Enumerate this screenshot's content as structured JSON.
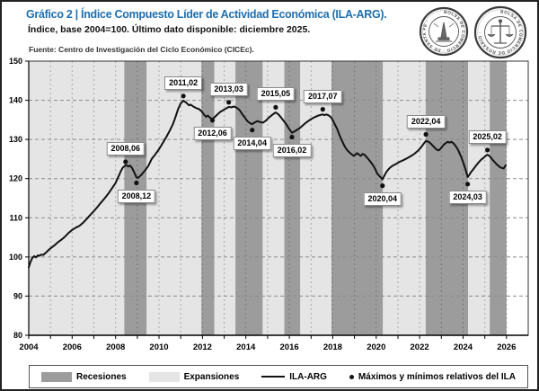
{
  "header": {
    "title": "Gráfico 2 | Índice Compuesto Líder de Actividad Económica (ILA-ARG).",
    "subtitle": "Índice, base 2004=100. Último dato disponible: diciembre 2025.",
    "source": "Fuente: Centro de Investigación del Ciclo Económico (CICEc).",
    "logo_left": "BOLSA DE COMERCIO · DE SANTA FE ·",
    "logo_right": "BOLSA DE COMERCIO DE ROSARIO ·"
  },
  "colors": {
    "title_blue": "#1E6FB0",
    "recession": "#9C9C9C",
    "expansion": "#E5E5E5",
    "line": "#111111",
    "grid": "#8C8C8C",
    "plot_border": "#333333"
  },
  "chart_data": {
    "type": "line",
    "title": "Índice Compuesto Líder de Actividad Económica (ILA-ARG)",
    "xlabel": "",
    "ylabel": "",
    "ylim": [
      80,
      150
    ],
    "ytick_step": 10,
    "xlim": [
      2004,
      2027
    ],
    "xtick_labels": [
      2004,
      2006,
      2008,
      2010,
      2012,
      2014,
      2016,
      2018,
      2020,
      2022,
      2024,
      2026
    ],
    "grid": true,
    "legend_position": "bottom",
    "data_end": 2026.0,
    "recessions": [
      [
        2008.4,
        2009.42
      ],
      [
        2011.95,
        2012.54
      ],
      [
        2013.52,
        2014.77
      ],
      [
        2015.77,
        2016.5
      ],
      [
        2017.94,
        2020.3
      ],
      [
        2022.28,
        2024.23
      ],
      [
        2025.23,
        2026.0
      ]
    ],
    "series": [
      {
        "name": "ILA-ARG"
      }
    ],
    "points": [
      [
        2004.0,
        97.3
      ],
      [
        2004.08,
        98.7
      ],
      [
        2004.17,
        99.8
      ],
      [
        2004.25,
        100.2
      ],
      [
        2004.33,
        99.9
      ],
      [
        2004.42,
        100.4
      ],
      [
        2004.5,
        100.3
      ],
      [
        2004.58,
        100.6
      ],
      [
        2004.67,
        100.5
      ],
      [
        2004.75,
        100.9
      ],
      [
        2004.83,
        101.3
      ],
      [
        2004.92,
        101.8
      ],
      [
        2005.0,
        102.2
      ],
      [
        2005.17,
        102.9
      ],
      [
        2005.33,
        103.7
      ],
      [
        2005.5,
        104.4
      ],
      [
        2005.67,
        105.2
      ],
      [
        2005.83,
        106.1
      ],
      [
        2006.0,
        106.9
      ],
      [
        2006.17,
        107.5
      ],
      [
        2006.33,
        107.9
      ],
      [
        2006.5,
        108.7
      ],
      [
        2006.67,
        109.7
      ],
      [
        2006.83,
        110.7
      ],
      [
        2007.0,
        111.7
      ],
      [
        2007.17,
        112.8
      ],
      [
        2007.33,
        113.9
      ],
      [
        2007.5,
        115.0
      ],
      [
        2007.67,
        116.2
      ],
      [
        2007.83,
        117.5
      ],
      [
        2008.0,
        118.9
      ],
      [
        2008.08,
        119.9
      ],
      [
        2008.17,
        121.0
      ],
      [
        2008.25,
        122.0
      ],
      [
        2008.33,
        122.8
      ],
      [
        2008.46,
        123.4
      ],
      [
        2008.54,
        123.3
      ],
      [
        2008.58,
        123.1
      ],
      [
        2008.67,
        123.3
      ],
      [
        2008.75,
        122.8
      ],
      [
        2008.83,
        121.9
      ],
      [
        2008.92,
        120.8
      ],
      [
        2008.96,
        120.3
      ],
      [
        2009.04,
        120.2
      ],
      [
        2009.17,
        120.9
      ],
      [
        2009.33,
        121.9
      ],
      [
        2009.5,
        123.2
      ],
      [
        2009.66,
        125.0
      ],
      [
        2009.83,
        126.2
      ],
      [
        2010.0,
        127.5
      ],
      [
        2010.17,
        129.1
      ],
      [
        2010.34,
        130.7
      ],
      [
        2010.5,
        132.3
      ],
      [
        2010.63,
        133.8
      ],
      [
        2010.75,
        135.6
      ],
      [
        2010.88,
        137.8
      ],
      [
        2011.0,
        139.2
      ],
      [
        2011.12,
        139.9
      ],
      [
        2011.25,
        139.4
      ],
      [
        2011.38,
        138.7
      ],
      [
        2011.46,
        138.9
      ],
      [
        2011.58,
        138.4
      ],
      [
        2011.71,
        138.0
      ],
      [
        2011.83,
        137.8
      ],
      [
        2011.96,
        137.2
      ],
      [
        2012.08,
        136.3
      ],
      [
        2012.17,
        135.8
      ],
      [
        2012.25,
        136.1
      ],
      [
        2012.33,
        135.6
      ],
      [
        2012.46,
        135.2
      ],
      [
        2012.58,
        135.8
      ],
      [
        2012.71,
        136.5
      ],
      [
        2012.83,
        137.1
      ],
      [
        2012.96,
        137.5
      ],
      [
        2013.08,
        137.9
      ],
      [
        2013.21,
        138.3
      ],
      [
        2013.33,
        138.2
      ],
      [
        2013.46,
        138.4
      ],
      [
        2013.58,
        138.1
      ],
      [
        2013.71,
        137.5
      ],
      [
        2013.83,
        136.5
      ],
      [
        2013.96,
        135.5
      ],
      [
        2014.08,
        134.6
      ],
      [
        2014.21,
        134.1
      ],
      [
        2014.29,
        133.9
      ],
      [
        2014.42,
        134.4
      ],
      [
        2014.54,
        134.7
      ],
      [
        2014.67,
        134.4
      ],
      [
        2014.79,
        134.3
      ],
      [
        2014.92,
        134.8
      ],
      [
        2015.04,
        135.5
      ],
      [
        2015.17,
        136.1
      ],
      [
        2015.29,
        136.6
      ],
      [
        2015.37,
        136.9
      ],
      [
        2015.5,
        136.4
      ],
      [
        2015.62,
        135.6
      ],
      [
        2015.75,
        134.7
      ],
      [
        2015.87,
        133.8
      ],
      [
        2016.0,
        132.6
      ],
      [
        2016.12,
        131.7
      ],
      [
        2016.25,
        132.1
      ],
      [
        2016.37,
        132.5
      ],
      [
        2016.5,
        133.0
      ],
      [
        2016.62,
        133.6
      ],
      [
        2016.75,
        134.2
      ],
      [
        2016.87,
        134.7
      ],
      [
        2017.0,
        135.2
      ],
      [
        2017.17,
        135.7
      ],
      [
        2017.33,
        136.1
      ],
      [
        2017.46,
        136.3
      ],
      [
        2017.54,
        136.4
      ],
      [
        2017.62,
        136.2
      ],
      [
        2017.71,
        136.4
      ],
      [
        2017.83,
        136.1
      ],
      [
        2017.94,
        135.5
      ],
      [
        2018.04,
        134.5
      ],
      [
        2018.12,
        133.6
      ],
      [
        2018.21,
        132.6
      ],
      [
        2018.29,
        131.4
      ],
      [
        2018.37,
        130.3
      ],
      [
        2018.46,
        129.2
      ],
      [
        2018.54,
        128.3
      ],
      [
        2018.62,
        127.6
      ],
      [
        2018.71,
        127.0
      ],
      [
        2018.79,
        126.6
      ],
      [
        2018.87,
        126.2
      ],
      [
        2018.96,
        125.8
      ],
      [
        2019.04,
        126.1
      ],
      [
        2019.12,
        126.5
      ],
      [
        2019.21,
        126.1
      ],
      [
        2019.29,
        125.8
      ],
      [
        2019.37,
        126.3
      ],
      [
        2019.46,
        126.1
      ],
      [
        2019.54,
        125.6
      ],
      [
        2019.62,
        125.1
      ],
      [
        2019.71,
        124.5
      ],
      [
        2019.79,
        123.9
      ],
      [
        2019.87,
        123.3
      ],
      [
        2019.96,
        122.4
      ],
      [
        2020.04,
        121.4
      ],
      [
        2020.12,
        120.8
      ],
      [
        2020.21,
        120.3
      ],
      [
        2020.29,
        119.8
      ],
      [
        2020.37,
        120.7
      ],
      [
        2020.46,
        121.6
      ],
      [
        2020.54,
        122.2
      ],
      [
        2020.62,
        122.7
      ],
      [
        2020.71,
        123.1
      ],
      [
        2020.79,
        123.4
      ],
      [
        2020.87,
        123.6
      ],
      [
        2020.96,
        123.9
      ],
      [
        2021.08,
        124.3
      ],
      [
        2021.25,
        124.7
      ],
      [
        2021.42,
        125.2
      ],
      [
        2021.58,
        125.7
      ],
      [
        2021.75,
        126.3
      ],
      [
        2021.92,
        127.1
      ],
      [
        2022.04,
        127.8
      ],
      [
        2022.12,
        128.4
      ],
      [
        2022.21,
        129.1
      ],
      [
        2022.29,
        129.6
      ],
      [
        2022.42,
        129.4
      ],
      [
        2022.54,
        128.8
      ],
      [
        2022.62,
        128.3
      ],
      [
        2022.71,
        127.8
      ],
      [
        2022.79,
        127.4
      ],
      [
        2022.87,
        127.2
      ],
      [
        2022.96,
        127.6
      ],
      [
        2023.04,
        128.2
      ],
      [
        2023.12,
        128.7
      ],
      [
        2023.21,
        129.1
      ],
      [
        2023.29,
        129.4
      ],
      [
        2023.37,
        129.2
      ],
      [
        2023.46,
        129.4
      ],
      [
        2023.54,
        129.1
      ],
      [
        2023.62,
        128.6
      ],
      [
        2023.71,
        127.9
      ],
      [
        2023.79,
        127.1
      ],
      [
        2023.87,
        126.1
      ],
      [
        2023.96,
        124.9
      ],
      [
        2024.04,
        123.6
      ],
      [
        2024.12,
        122.2
      ],
      [
        2024.21,
        120.4
      ],
      [
        2024.29,
        121.0
      ],
      [
        2024.37,
        121.7
      ],
      [
        2024.46,
        122.3
      ],
      [
        2024.54,
        122.9
      ],
      [
        2024.62,
        123.5
      ],
      [
        2024.71,
        124.1
      ],
      [
        2024.79,
        124.6
      ],
      [
        2024.87,
        125.0
      ],
      [
        2024.96,
        125.4
      ],
      [
        2025.04,
        125.8
      ],
      [
        2025.12,
        126.1
      ],
      [
        2025.21,
        125.8
      ],
      [
        2025.29,
        125.3
      ],
      [
        2025.37,
        124.7
      ],
      [
        2025.46,
        124.2
      ],
      [
        2025.54,
        123.7
      ],
      [
        2025.62,
        123.3
      ],
      [
        2025.71,
        122.9
      ],
      [
        2025.79,
        122.7
      ],
      [
        2025.87,
        122.6
      ],
      [
        2025.96,
        123.4
      ]
    ],
    "extremes": [
      {
        "label": "2008,06",
        "year": 2008.46,
        "dot": 124.3,
        "side": "above"
      },
      {
        "label": "2008,12",
        "year": 2008.96,
        "dot": 118.9,
        "side": "below"
      },
      {
        "label": "2011,02",
        "year": 2011.12,
        "dot": 141.1,
        "side": "above"
      },
      {
        "label": "2012,06",
        "year": 2012.46,
        "dot": 134.9,
        "side": "below"
      },
      {
        "label": "2013,03",
        "year": 2013.21,
        "dot": 139.5,
        "side": "above"
      },
      {
        "label": "2014,04",
        "year": 2014.29,
        "dot": 132.4,
        "side": "below"
      },
      {
        "label": "2015,05",
        "year": 2015.37,
        "dot": 138.2,
        "side": "above"
      },
      {
        "label": "2016,02",
        "year": 2016.12,
        "dot": 130.6,
        "side": "below"
      },
      {
        "label": "2017,07",
        "year": 2017.54,
        "dot": 137.7,
        "side": "above"
      },
      {
        "label": "2020,04",
        "year": 2020.29,
        "dot": 118.2,
        "side": "below"
      },
      {
        "label": "2022,04",
        "year": 2022.29,
        "dot": 131.3,
        "side": "above"
      },
      {
        "label": "2024,03",
        "year": 2024.21,
        "dot": 118.6,
        "side": "below"
      },
      {
        "label": "2025,02",
        "year": 2025.12,
        "dot": 127.3,
        "side": "above"
      }
    ],
    "legend": [
      {
        "label": "Recesiones",
        "type": "recession"
      },
      {
        "label": "Expansiones",
        "type": "expansion"
      },
      {
        "label": "ILA-ARG",
        "type": "line"
      },
      {
        "label": "Máximos y mínimos relativos del ILA",
        "type": "dot"
      }
    ]
  }
}
